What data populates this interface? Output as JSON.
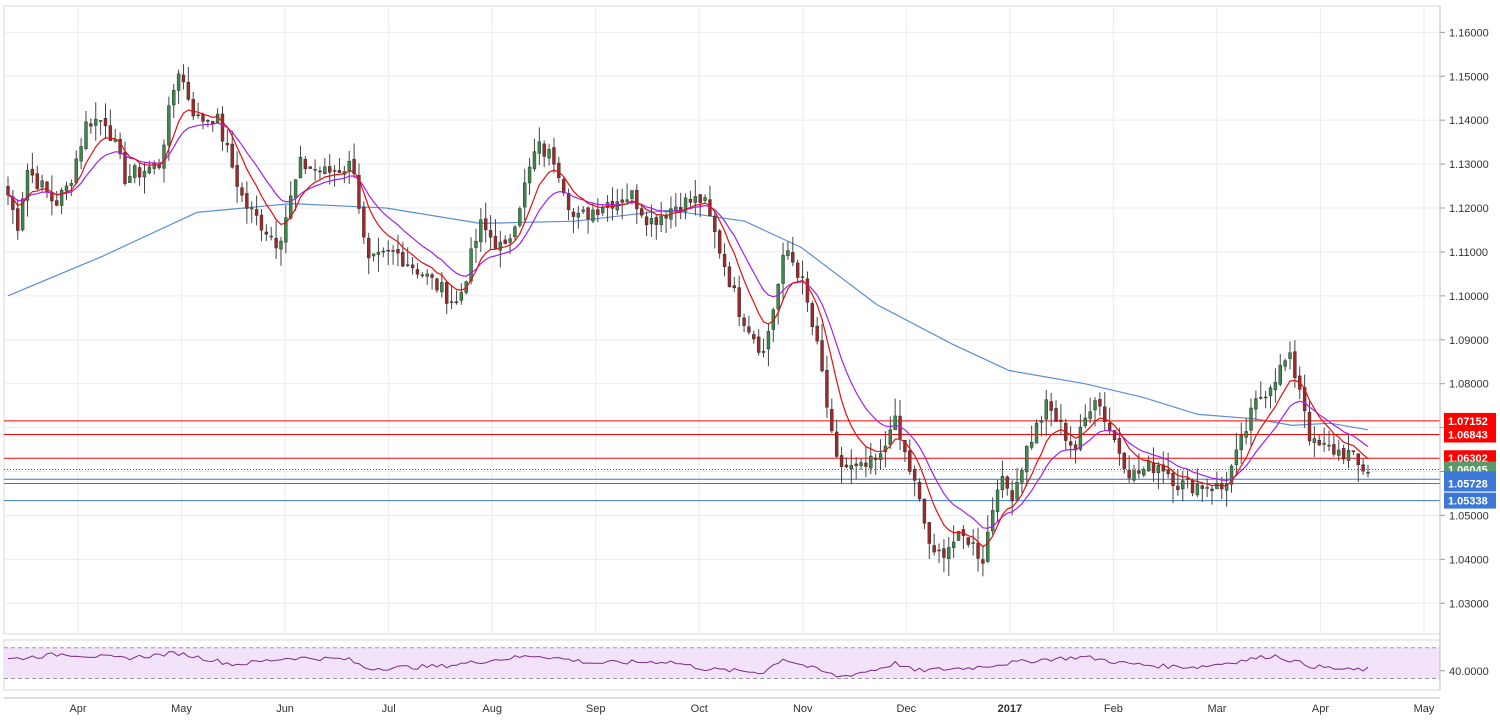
{
  "chart_data": {
    "type": "candlestick",
    "symbol_hint": "EUR/USD daily",
    "x_months": [
      "Apr",
      "May",
      "Jun",
      "Jul",
      "Aug",
      "Sep",
      "Oct",
      "Nov",
      "Dec",
      "2017",
      "Feb",
      "Mar",
      "Apr",
      "May"
    ],
    "y_ticks": [
      "1.16000",
      "1.15000",
      "1.14000",
      "1.13000",
      "1.12000",
      "1.11000",
      "1.10000",
      "1.09000",
      "1.08000",
      "1.07000",
      "1.06000",
      "1.05000",
      "1.04000",
      "1.03000"
    ],
    "ylim": [
      1.023,
      1.166
    ],
    "current_price": {
      "label": "1.06045",
      "value": 1.06045,
      "color": "#5b9a68"
    },
    "resistance_levels": [
      {
        "label": "1.07152",
        "value": 1.07152,
        "color": "#ff0000"
      },
      {
        "label": "1.06843",
        "value": 1.06843,
        "color": "#ff0000"
      },
      {
        "label": "1.06302",
        "value": 1.06302,
        "color": "#ff0000"
      }
    ],
    "support_levels": [
      {
        "label": "1.05823",
        "value": 1.05823,
        "color": "#3c78d8"
      },
      {
        "label": "1.05728",
        "value": 1.05728,
        "color": "#3c78d8"
      },
      {
        "label": "1.05338",
        "value": 1.05338,
        "color": "#3c78d8"
      }
    ],
    "price_path": [
      {
        "t": 0,
        "p": 1.123
      },
      {
        "t": 0.5,
        "p": 1.116
      },
      {
        "t": 1,
        "p": 1.129
      },
      {
        "t": 2.5,
        "p": 1.121
      },
      {
        "t": 3.2,
        "p": 1.125
      },
      {
        "t": 4.2,
        "p": 1.14
      },
      {
        "t": 5.2,
        "p": 1.14
      },
      {
        "t": 6.2,
        "p": 1.127
      },
      {
        "t": 8.0,
        "p": 1.13
      },
      {
        "t": 9.0,
        "p": 1.152
      },
      {
        "t": 10.0,
        "p": 1.14
      },
      {
        "t": 11.0,
        "p": 1.141
      },
      {
        "t": 12.5,
        "p": 1.121
      },
      {
        "t": 14.3,
        "p": 1.112
      },
      {
        "t": 15.5,
        "p": 1.13
      },
      {
        "t": 16.8,
        "p": 1.128
      },
      {
        "t": 18.3,
        "p": 1.13
      },
      {
        "t": 19.0,
        "p": 1.107
      },
      {
        "t": 20.5,
        "p": 1.11
      },
      {
        "t": 22.0,
        "p": 1.105
      },
      {
        "t": 23.8,
        "p": 1.098
      },
      {
        "t": 25.0,
        "p": 1.116
      },
      {
        "t": 26.3,
        "p": 1.11
      },
      {
        "t": 28.0,
        "p": 1.134
      },
      {
        "t": 29.0,
        "p": 1.131
      },
      {
        "t": 30.0,
        "p": 1.117
      },
      {
        "t": 31.5,
        "p": 1.121
      },
      {
        "t": 33.0,
        "p": 1.123
      },
      {
        "t": 34.0,
        "p": 1.117
      },
      {
        "t": 35.5,
        "p": 1.121
      },
      {
        "t": 36.8,
        "p": 1.122
      },
      {
        "t": 37.5,
        "p": 1.113
      },
      {
        "t": 38.7,
        "p": 1.097
      },
      {
        "t": 40.0,
        "p": 1.087
      },
      {
        "t": 41.2,
        "p": 1.111
      },
      {
        "t": 42.0,
        "p": 1.104
      },
      {
        "t": 43.0,
        "p": 1.085
      },
      {
        "t": 43.8,
        "p": 1.062
      },
      {
        "t": 45.0,
        "p": 1.06
      },
      {
        "t": 46.3,
        "p": 1.063
      },
      {
        "t": 46.8,
        "p": 1.073
      },
      {
        "t": 48.0,
        "p": 1.057
      },
      {
        "t": 49.0,
        "p": 1.04
      },
      {
        "t": 50.0,
        "p": 1.044
      },
      {
        "t": 50.8,
        "p": 1.045
      },
      {
        "t": 51.6,
        "p": 1.04
      },
      {
        "t": 52.4,
        "p": 1.058
      },
      {
        "t": 53.2,
        "p": 1.055
      },
      {
        "t": 54.0,
        "p": 1.066
      },
      {
        "t": 55.0,
        "p": 1.075
      },
      {
        "t": 56.5,
        "p": 1.065
      },
      {
        "t": 57.5,
        "p": 1.078
      },
      {
        "t": 58.7,
        "p": 1.066
      },
      {
        "t": 59.5,
        "p": 1.059
      },
      {
        "t": 61.0,
        "p": 1.062
      },
      {
        "t": 62.0,
        "p": 1.057
      },
      {
        "t": 63.5,
        "p": 1.057
      },
      {
        "t": 64.3,
        "p": 1.056
      },
      {
        "t": 65.0,
        "p": 1.063
      },
      {
        "t": 66.0,
        "p": 1.075
      },
      {
        "t": 66.8,
        "p": 1.08
      },
      {
        "t": 67.8,
        "p": 1.086
      },
      {
        "t": 68.5,
        "p": 1.078
      },
      {
        "t": 69.0,
        "p": 1.066
      },
      {
        "t": 70.0,
        "p": 1.065
      },
      {
        "t": 71.0,
        "p": 1.064
      },
      {
        "t": 71.5,
        "p": 1.061
      },
      {
        "t": 72.0,
        "p": 1.0605
      }
    ],
    "sma_path": [
      {
        "t": 0,
        "p": 1.1
      },
      {
        "t": 5,
        "p": 1.109
      },
      {
        "t": 10,
        "p": 1.119
      },
      {
        "t": 15,
        "p": 1.121
      },
      {
        "t": 20,
        "p": 1.12
      },
      {
        "t": 25,
        "p": 1.1165
      },
      {
        "t": 30,
        "p": 1.117
      },
      {
        "t": 35,
        "p": 1.1195
      },
      {
        "t": 39,
        "p": 1.117
      },
      {
        "t": 42,
        "p": 1.111
      },
      {
        "t": 46,
        "p": 1.098
      },
      {
        "t": 50,
        "p": 1.089
      },
      {
        "t": 53,
        "p": 1.083
      },
      {
        "t": 57,
        "p": 1.08
      },
      {
        "t": 60,
        "p": 1.077
      },
      {
        "t": 63,
        "p": 1.073
      },
      {
        "t": 66,
        "p": 1.072
      },
      {
        "t": 68,
        "p": 1.0705
      },
      {
        "t": 70,
        "p": 1.071
      },
      {
        "t": 72,
        "p": 1.0695
      }
    ],
    "rsi_path": [
      {
        "t": 0,
        "p": 55
      },
      {
        "t": 3,
        "p": 62
      },
      {
        "t": 6,
        "p": 56
      },
      {
        "t": 9,
        "p": 63
      },
      {
        "t": 12,
        "p": 48
      },
      {
        "t": 15,
        "p": 57
      },
      {
        "t": 18,
        "p": 55
      },
      {
        "t": 19,
        "p": 43
      },
      {
        "t": 23,
        "p": 46
      },
      {
        "t": 26,
        "p": 55
      },
      {
        "t": 28,
        "p": 60
      },
      {
        "t": 31,
        "p": 50
      },
      {
        "t": 35,
        "p": 52
      },
      {
        "t": 37,
        "p": 42
      },
      {
        "t": 40,
        "p": 38
      },
      {
        "t": 41,
        "p": 56
      },
      {
        "t": 44,
        "p": 32
      },
      {
        "t": 46,
        "p": 42
      },
      {
        "t": 47,
        "p": 50
      },
      {
        "t": 48,
        "p": 40
      },
      {
        "t": 51,
        "p": 44
      },
      {
        "t": 53,
        "p": 50
      },
      {
        "t": 55,
        "p": 55
      },
      {
        "t": 57,
        "p": 58
      },
      {
        "t": 59,
        "p": 50
      },
      {
        "t": 61,
        "p": 46
      },
      {
        "t": 63,
        "p": 45
      },
      {
        "t": 65,
        "p": 52
      },
      {
        "t": 67,
        "p": 60
      },
      {
        "t": 69,
        "p": 46
      },
      {
        "t": 71,
        "p": 41
      },
      {
        "t": 72,
        "p": 42
      }
    ],
    "rsi_ticks": [
      {
        "label": "40.0000",
        "value": 40
      }
    ],
    "rsi_bands": [
      70,
      30
    ]
  }
}
